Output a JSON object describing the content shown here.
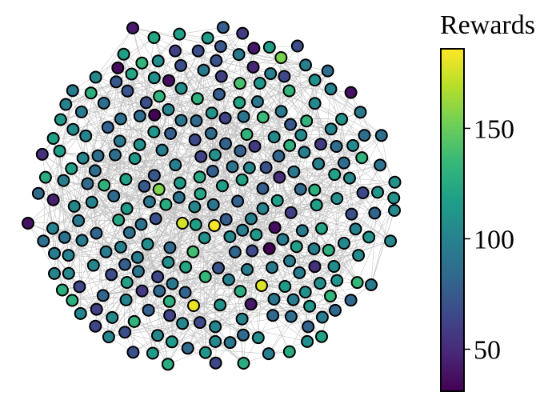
{
  "chart_data": {
    "type": "network-graph",
    "colorbar": {
      "title": "Rewards",
      "colormap": "viridis",
      "range": [
        31,
        186
      ],
      "ticks": [
        50,
        100,
        150
      ]
    },
    "node_count": 280,
    "node_value_range": [
      31,
      186
    ],
    "node_edge_color": "#000000",
    "edge_color": "#bbbbbb",
    "colors": {
      "viridis": [
        "#440154",
        "#482878",
        "#3e4989",
        "#31688e",
        "#26828e",
        "#1f9e89",
        "#35b779",
        "#6ece58",
        "#b5de2b",
        "#fde725"
      ]
    }
  }
}
